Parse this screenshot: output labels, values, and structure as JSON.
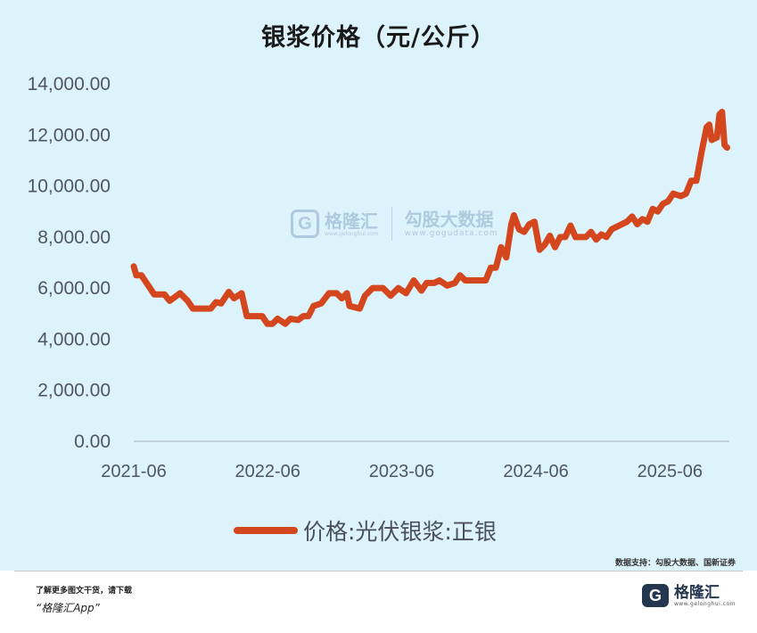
{
  "source_note": "数据支持：勾股大数据、国新证券",
  "footer": {
    "line1": "了解更多图文干货，请下载",
    "line2": "“格隆汇App”",
    "logo_name": "格隆汇",
    "logo_url": "www.gelonghui.com"
  },
  "watermark": {
    "brand1": "格隆汇",
    "brand1_url": "www.gelonghui.com",
    "brand2": "勾股大数据",
    "brand2_url": "www.gogudata.com"
  },
  "chart_data": {
    "type": "line",
    "title": "银浆价格（元/公斤）",
    "xlabel": "",
    "ylabel": "",
    "x_ticks": [
      "2021-06",
      "2022-06",
      "2023-06",
      "2024-06",
      "2025-06"
    ],
    "y_ticks": [
      "0.00",
      "2,000.00",
      "4,000.00",
      "6,000.00",
      "8,000.00",
      "10,000.00",
      "12,000.00",
      "14,000.00"
    ],
    "ylim": [
      0,
      14000
    ],
    "xlim": [
      "2021-06-01",
      "2025-11-10"
    ],
    "grid": false,
    "legend_position": "bottom",
    "color": "#d4471e",
    "series": [
      {
        "name": "价格:光伏银浆:正银",
        "points": [
          [
            "2021-06-01",
            6850
          ],
          [
            "2021-06-08",
            6500
          ],
          [
            "2021-06-22",
            6500
          ],
          [
            "2021-07-06",
            6200
          ],
          [
            "2021-07-27",
            5750
          ],
          [
            "2021-08-24",
            5750
          ],
          [
            "2021-09-07",
            5500
          ],
          [
            "2021-10-05",
            5800
          ],
          [
            "2021-10-26",
            5500
          ],
          [
            "2021-11-09",
            5200
          ],
          [
            "2021-12-28",
            5200
          ],
          [
            "2022-01-11",
            5450
          ],
          [
            "2022-01-25",
            5400
          ],
          [
            "2022-02-15",
            5850
          ],
          [
            "2022-03-01",
            5600
          ],
          [
            "2022-03-22",
            5800
          ],
          [
            "2022-04-05",
            4900
          ],
          [
            "2022-05-17",
            4900
          ],
          [
            "2022-05-31",
            4600
          ],
          [
            "2022-06-14",
            4600
          ],
          [
            "2022-06-28",
            4800
          ],
          [
            "2022-07-19",
            4600
          ],
          [
            "2022-08-02",
            4800
          ],
          [
            "2022-08-23",
            4750
          ],
          [
            "2022-09-06",
            4900
          ],
          [
            "2022-09-20",
            4900
          ],
          [
            "2022-10-04",
            5300
          ],
          [
            "2022-10-25",
            5400
          ],
          [
            "2022-11-15",
            5800
          ],
          [
            "2022-12-06",
            5800
          ],
          [
            "2022-12-20",
            5600
          ],
          [
            "2023-01-03",
            5800
          ],
          [
            "2023-01-10",
            5300
          ],
          [
            "2023-02-07",
            5200
          ],
          [
            "2023-02-21",
            5700
          ],
          [
            "2023-03-14",
            6000
          ],
          [
            "2023-04-11",
            6000
          ],
          [
            "2023-05-02",
            5700
          ],
          [
            "2023-05-23",
            6000
          ],
          [
            "2023-06-13",
            5800
          ],
          [
            "2023-07-04",
            6300
          ],
          [
            "2023-07-25",
            5900
          ],
          [
            "2023-08-08",
            6200
          ],
          [
            "2023-08-29",
            6200
          ],
          [
            "2023-09-12",
            6300
          ],
          [
            "2023-10-03",
            6100
          ],
          [
            "2023-10-24",
            6200
          ],
          [
            "2023-11-07",
            6500
          ],
          [
            "2023-11-21",
            6300
          ],
          [
            "2023-12-12",
            6300
          ],
          [
            "2024-01-02",
            6300
          ],
          [
            "2024-01-16",
            6300
          ],
          [
            "2024-01-30",
            6800
          ],
          [
            "2024-02-13",
            6800
          ],
          [
            "2024-02-27",
            7600
          ],
          [
            "2024-03-12",
            7200
          ],
          [
            "2024-03-26",
            8500
          ],
          [
            "2024-04-02",
            8850
          ],
          [
            "2024-04-16",
            8300
          ],
          [
            "2024-04-30",
            8200
          ],
          [
            "2024-05-14",
            8500
          ],
          [
            "2024-05-28",
            8600
          ],
          [
            "2024-06-11",
            7500
          ],
          [
            "2024-06-25",
            7700
          ],
          [
            "2024-07-09",
            8050
          ],
          [
            "2024-07-23",
            7600
          ],
          [
            "2024-08-06",
            8000
          ],
          [
            "2024-08-20",
            8000
          ],
          [
            "2024-09-03",
            8450
          ],
          [
            "2024-09-17",
            8000
          ],
          [
            "2024-10-15",
            8000
          ],
          [
            "2024-10-29",
            8200
          ],
          [
            "2024-11-12",
            7900
          ],
          [
            "2024-11-26",
            8100
          ],
          [
            "2024-12-10",
            8000
          ],
          [
            "2024-12-24",
            8300
          ],
          [
            "2025-01-07",
            8400
          ],
          [
            "2025-02-04",
            8600
          ],
          [
            "2025-02-18",
            8800
          ],
          [
            "2025-03-04",
            8500
          ],
          [
            "2025-03-18",
            8700
          ],
          [
            "2025-04-01",
            8600
          ],
          [
            "2025-04-15",
            9100
          ],
          [
            "2025-04-29",
            9000
          ],
          [
            "2025-05-13",
            9300
          ],
          [
            "2025-05-27",
            9400
          ],
          [
            "2025-06-10",
            9700
          ],
          [
            "2025-07-01",
            9600
          ],
          [
            "2025-07-15",
            9700
          ],
          [
            "2025-07-29",
            10200
          ],
          [
            "2025-08-12",
            10200
          ],
          [
            "2025-08-26",
            11300
          ],
          [
            "2025-09-09",
            12300
          ],
          [
            "2025-09-16",
            12400
          ],
          [
            "2025-09-23",
            11800
          ],
          [
            "2025-10-07",
            11900
          ],
          [
            "2025-10-14",
            12800
          ],
          [
            "2025-10-21",
            12900
          ],
          [
            "2025-10-28",
            11600
          ],
          [
            "2025-11-04",
            11500
          ]
        ]
      }
    ]
  }
}
